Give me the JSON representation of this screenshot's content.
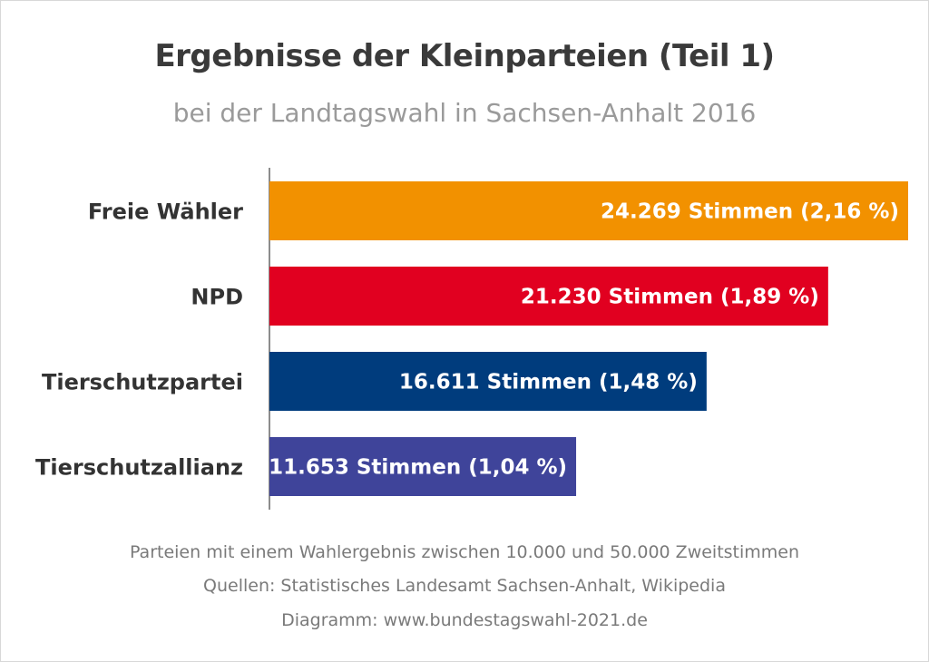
{
  "chart_data": {
    "type": "bar",
    "orientation": "horizontal",
    "title": "Ergebnisse der Kleinparteien (Teil 1)",
    "subtitle": "bei der Landtagswahl in Sachsen-Anhalt 2016",
    "categories": [
      "Freie Wähler",
      "NPD",
      "Tierschutzpartei",
      "Tierschutzallianz"
    ],
    "values": [
      24269,
      21230,
      16611,
      11653
    ],
    "percent": [
      2.16,
      1.89,
      1.48,
      1.04
    ],
    "data_labels": [
      "24.269 Stimmen (2,16 %)",
      "21.230 Stimmen (1,89 %)",
      "16.611 Stimmen (1,48 %)",
      "11.653 Stimmen (1,04 %)"
    ],
    "colors": [
      "#F29100",
      "#E10020",
      "#003C7D",
      "#3F449A"
    ],
    "xlim": [
      0,
      24269
    ],
    "grid": false,
    "xlabel": "",
    "ylabel": ""
  },
  "footer": {
    "line1": "Parteien mit einem Wahlergebnis zwischen 10.000 und 50.000 Zweitstimmen",
    "line2": "Quellen: Statistisches Landesamt Sachsen-Anhalt, Wikipedia",
    "line3": "Diagramm: www.bundestagswahl-2021.de"
  }
}
